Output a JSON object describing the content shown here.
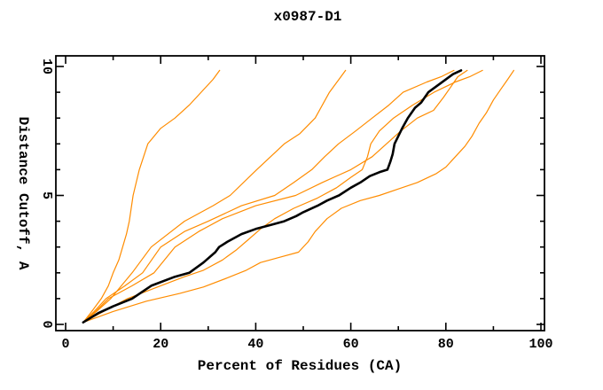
{
  "chart_data": {
    "type": "line",
    "title": "x0987-D1",
    "xlabel": "Percent of Residues (CA)",
    "ylabel": "Distance Cutoff, A",
    "xlim": [
      0,
      100
    ],
    "ylim": [
      0,
      10
    ],
    "x_major_ticks": [
      0,
      20,
      40,
      60,
      80,
      100
    ],
    "x_minor_ticks": [
      10,
      30,
      50,
      70,
      90
    ],
    "y_major_ticks": [
      0,
      5,
      10
    ],
    "y_minor_ticks": [
      1,
      2,
      3,
      4,
      6,
      7,
      8,
      9
    ],
    "grid": false,
    "legend": "none",
    "background": "#ffffff",
    "colors": {
      "highlight_line": "#000000",
      "other_lines": "#ff8c00"
    },
    "series": [
      {
        "id": "black-model",
        "color": "#000000",
        "width": 2.6,
        "points": [
          [
            3.7,
            0.08
          ],
          [
            7,
            0.45
          ],
          [
            10,
            0.7
          ],
          [
            14,
            1.0
          ],
          [
            18,
            1.5
          ],
          [
            23,
            1.85
          ],
          [
            26,
            2.0
          ],
          [
            29,
            2.4
          ],
          [
            31.5,
            2.8
          ],
          [
            32.3,
            3.0
          ],
          [
            34,
            3.2
          ],
          [
            37,
            3.5
          ],
          [
            40,
            3.7
          ],
          [
            43,
            3.85
          ],
          [
            46,
            4.0
          ],
          [
            48.5,
            4.2
          ],
          [
            50,
            4.35
          ],
          [
            53,
            4.6
          ],
          [
            55,
            4.8
          ],
          [
            57.5,
            5.0
          ],
          [
            60,
            5.3
          ],
          [
            62,
            5.5
          ],
          [
            64,
            5.75
          ],
          [
            66,
            5.9
          ],
          [
            67.7,
            6.0
          ],
          [
            68.3,
            6.3
          ],
          [
            68.8,
            6.6
          ],
          [
            69.2,
            7.0
          ],
          [
            70,
            7.3
          ],
          [
            70.8,
            7.6
          ],
          [
            72,
            8.0
          ],
          [
            73.5,
            8.4
          ],
          [
            74.8,
            8.6
          ],
          [
            76.3,
            9.0
          ],
          [
            78.5,
            9.3
          ],
          [
            80,
            9.5
          ],
          [
            81.5,
            9.7
          ],
          [
            83.2,
            9.85
          ]
        ]
      },
      {
        "id": "orange-1",
        "color": "#ff8c00",
        "width": 1.2,
        "points": [
          [
            3.7,
            0.08
          ],
          [
            5.5,
            0.5
          ],
          [
            7.5,
            1.0
          ],
          [
            9,
            1.5
          ],
          [
            10,
            2.0
          ],
          [
            11.2,
            2.5
          ],
          [
            12,
            3.0
          ],
          [
            12.8,
            3.5
          ],
          [
            13.4,
            4.0
          ],
          [
            14.2,
            5.0
          ],
          [
            15.5,
            6.0
          ],
          [
            17.3,
            7.0
          ],
          [
            20,
            7.6
          ],
          [
            23,
            8.0
          ],
          [
            26,
            8.5
          ],
          [
            28.5,
            9.0
          ],
          [
            31,
            9.5
          ],
          [
            32.4,
            9.85
          ]
        ]
      },
      {
        "id": "orange-2",
        "color": "#ff8c00",
        "width": 1.2,
        "points": [
          [
            3.7,
            0.08
          ],
          [
            6.5,
            0.5
          ],
          [
            9.5,
            1.0
          ],
          [
            14,
            2.0
          ],
          [
            18,
            3.0
          ],
          [
            25,
            4.0
          ],
          [
            31,
            4.6
          ],
          [
            34.6,
            5.0
          ],
          [
            40.2,
            6.0
          ],
          [
            46,
            7.0
          ],
          [
            49.3,
            7.4
          ],
          [
            52.5,
            8.0
          ],
          [
            55.5,
            9.0
          ],
          [
            57.5,
            9.5
          ],
          [
            58.9,
            9.85
          ]
        ]
      },
      {
        "id": "orange-3",
        "color": "#ff8c00",
        "width": 1.2,
        "points": [
          [
            3.7,
            0.08
          ],
          [
            6,
            0.5
          ],
          [
            8.5,
            1.0
          ],
          [
            12.5,
            1.5
          ],
          [
            16.2,
            2.0
          ],
          [
            20,
            3.0
          ],
          [
            25,
            3.6
          ],
          [
            30,
            4.0
          ],
          [
            37,
            4.6
          ],
          [
            44,
            5.0
          ],
          [
            48,
            5.5
          ],
          [
            51.8,
            6.0
          ],
          [
            54.5,
            6.5
          ],
          [
            57.4,
            7.0
          ],
          [
            61,
            7.5
          ],
          [
            64.5,
            8.0
          ],
          [
            68,
            8.5
          ],
          [
            71,
            9.0
          ],
          [
            76,
            9.4
          ],
          [
            79,
            9.6
          ],
          [
            81.7,
            9.85
          ]
        ]
      },
      {
        "id": "orange-4",
        "color": "#ff8c00",
        "width": 1.2,
        "points": [
          [
            3.7,
            0.08
          ],
          [
            6.3,
            0.5
          ],
          [
            9,
            1.0
          ],
          [
            14,
            1.5
          ],
          [
            18.6,
            2.0
          ],
          [
            23,
            3.0
          ],
          [
            28,
            3.6
          ],
          [
            33,
            4.1
          ],
          [
            40,
            4.6
          ],
          [
            48.4,
            5.0
          ],
          [
            54,
            5.5
          ],
          [
            60,
            6.0
          ],
          [
            64.5,
            6.5
          ],
          [
            67.5,
            7.0
          ],
          [
            70.5,
            7.5
          ],
          [
            74,
            8.0
          ],
          [
            77.4,
            8.3
          ],
          [
            79.5,
            8.8
          ],
          [
            81,
            9.2
          ],
          [
            82.5,
            9.6
          ],
          [
            84.5,
            9.85
          ]
        ]
      },
      {
        "id": "orange-5",
        "color": "#ff8c00",
        "width": 1.2,
        "points": [
          [
            3.7,
            0.08
          ],
          [
            8,
            0.5
          ],
          [
            13,
            1.0
          ],
          [
            20,
            1.5
          ],
          [
            25,
            1.85
          ],
          [
            29,
            2.1
          ],
          [
            33,
            2.5
          ],
          [
            36,
            2.9
          ],
          [
            38.5,
            3.3
          ],
          [
            41,
            3.7
          ],
          [
            44,
            4.1
          ],
          [
            48,
            4.5
          ],
          [
            53,
            4.9
          ],
          [
            57,
            5.3
          ],
          [
            60,
            5.7
          ],
          [
            62.4,
            6.0
          ],
          [
            63.5,
            6.5
          ],
          [
            64.2,
            7.0
          ],
          [
            66,
            7.5
          ],
          [
            69,
            8.0
          ],
          [
            73,
            8.5
          ],
          [
            77.5,
            9.0
          ],
          [
            82,
            9.4
          ],
          [
            85,
            9.6
          ],
          [
            87.7,
            9.85
          ]
        ]
      },
      {
        "id": "orange-6",
        "color": "#ff8c00",
        "width": 1.2,
        "points": [
          [
            3.7,
            0.08
          ],
          [
            10,
            0.5
          ],
          [
            17,
            0.9
          ],
          [
            24,
            1.2
          ],
          [
            29,
            1.45
          ],
          [
            34,
            1.8
          ],
          [
            38,
            2.1
          ],
          [
            41,
            2.4
          ],
          [
            45,
            2.6
          ],
          [
            49,
            2.8
          ],
          [
            51,
            3.2
          ],
          [
            52.5,
            3.6
          ],
          [
            55,
            4.1
          ],
          [
            58,
            4.5
          ],
          [
            62,
            4.8
          ],
          [
            66,
            5.0
          ],
          [
            70,
            5.25
          ],
          [
            74,
            5.5
          ],
          [
            78,
            5.85
          ],
          [
            80,
            6.1
          ],
          [
            82,
            6.5
          ],
          [
            84,
            6.9
          ],
          [
            85.5,
            7.3
          ],
          [
            87,
            7.8
          ],
          [
            88.5,
            8.2
          ],
          [
            90,
            8.7
          ],
          [
            91.5,
            9.1
          ],
          [
            93,
            9.5
          ],
          [
            94.3,
            9.85
          ]
        ]
      }
    ]
  }
}
